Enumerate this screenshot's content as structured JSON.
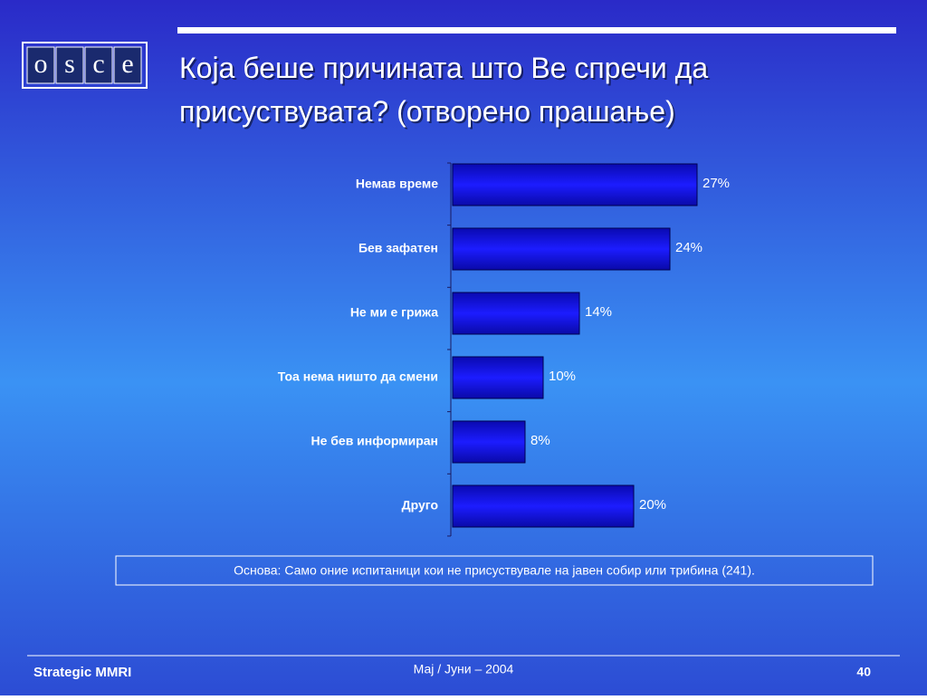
{
  "logo": {
    "letters": [
      "O",
      "S",
      "C",
      "E"
    ]
  },
  "chart_data": {
    "type": "bar",
    "orientation": "horizontal",
    "title": "Која беше причината што Ве спречи да присуствувата? (отворено прашање)",
    "categories": [
      "Немав време",
      "Бев зафатен",
      "Не ми е грижа",
      "Тоа нема ништо да смени",
      "Не бев информиран",
      "Друго"
    ],
    "values": [
      27,
      24,
      14,
      10,
      8,
      20
    ],
    "value_labels": [
      "27%",
      "24%",
      "14%",
      "10%",
      "8%",
      "20%"
    ],
    "color": "#1414e6",
    "note": "Основа: Само оние испитаници кои не присуствувале на јавен собир или трибина (241)."
  },
  "footer": {
    "left": "Strategic MMRI",
    "center": "Мај / Јуни – 2004",
    "page": "40"
  }
}
